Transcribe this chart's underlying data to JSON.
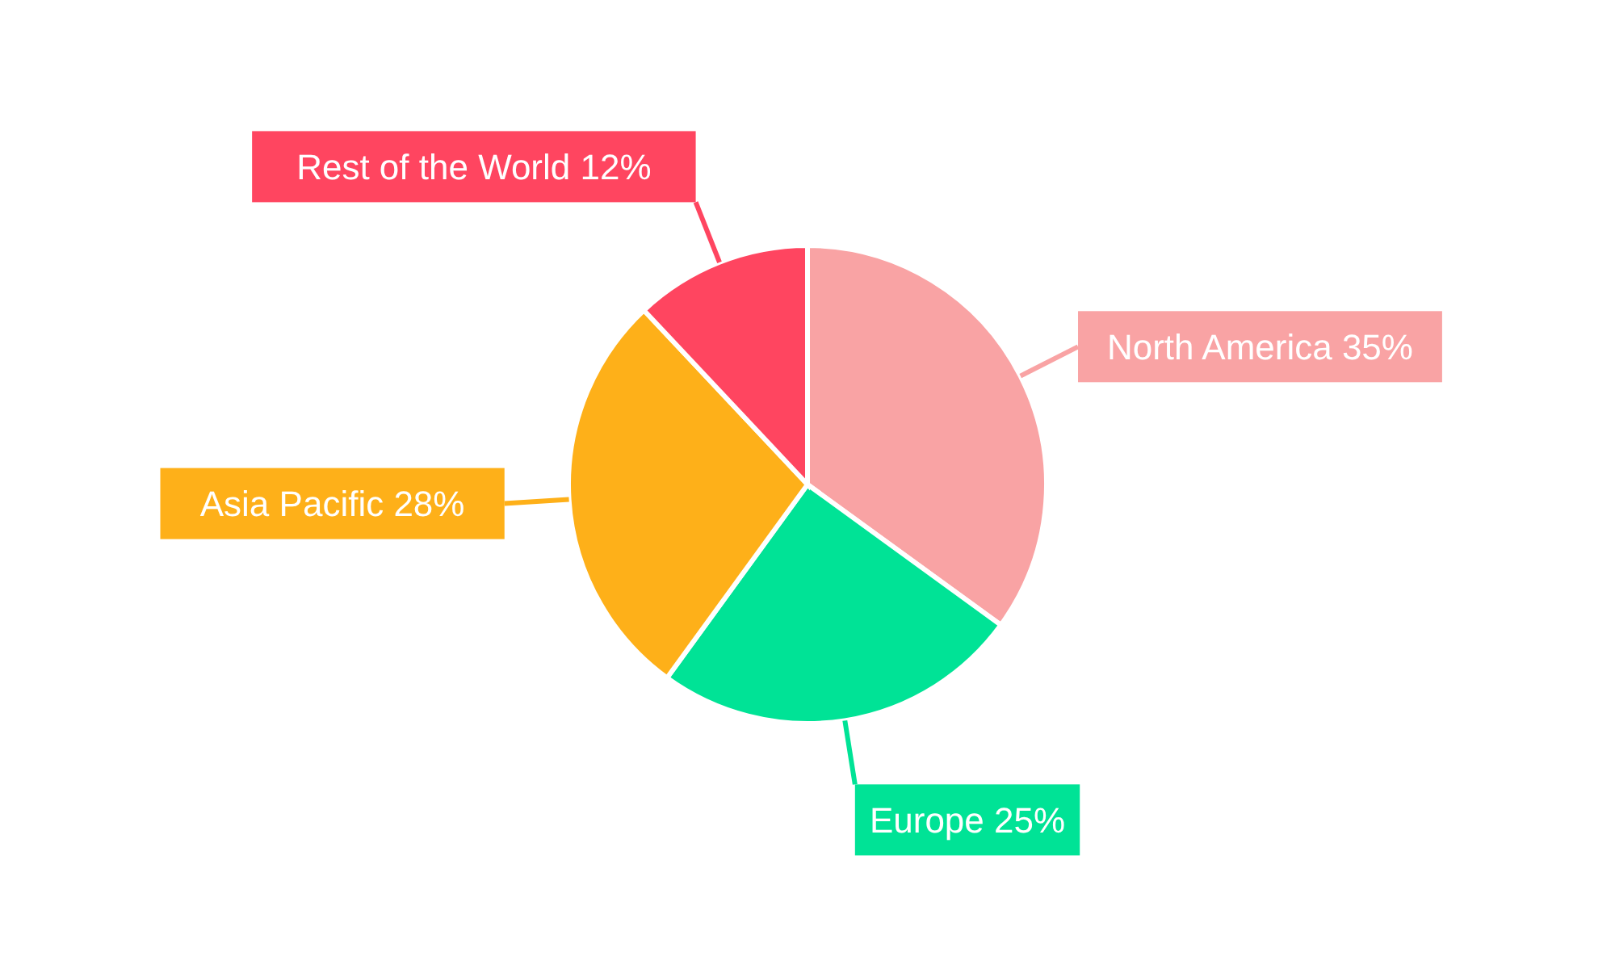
{
  "chart_data": {
    "type": "pie",
    "categories": [
      "North America",
      "Europe",
      "Asia Pacific",
      "Rest of the World"
    ],
    "values": [
      35,
      25,
      28,
      12
    ],
    "value_labels": [
      "35%",
      "25%",
      "28%",
      "12%"
    ],
    "colors": [
      "#f9a3a4",
      "#00e396",
      "#feb019",
      "#ff4560"
    ]
  }
}
